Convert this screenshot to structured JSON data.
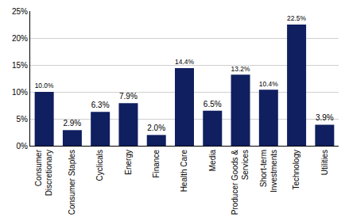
{
  "chart_data": {
    "type": "bar",
    "categories": [
      "Consumer Discretionary",
      "Consumer Staples",
      "Cyclicals",
      "Energy",
      "Finance",
      "Health Care",
      "Media",
      "Producer Goods & Services",
      "Short-term Investments",
      "Technology",
      "Utilities"
    ],
    "values": [
      10.0,
      2.9,
      6.3,
      7.9,
      2.0,
      14.4,
      6.5,
      13.2,
      10.4,
      22.5,
      3.9
    ],
    "value_labels": [
      "10.0%",
      "2.9%",
      "6.3%",
      "7.9%",
      "2.0%",
      "14.4%",
      "6.5%",
      "13.2%",
      "10.4%",
      "22.5%",
      "3.9%"
    ],
    "data_labels": true,
    "color": "#0f1f5f",
    "ylim": [
      0,
      25
    ],
    "yticks": [
      {
        "value": 0,
        "label": "0%"
      },
      {
        "value": 5,
        "label": "5%"
      },
      {
        "value": 10,
        "label": "10%"
      },
      {
        "value": 15,
        "label": "15%"
      },
      {
        "value": 20,
        "label": "20%"
      },
      {
        "value": 25,
        "label": "25%"
      }
    ],
    "grid": true
  }
}
